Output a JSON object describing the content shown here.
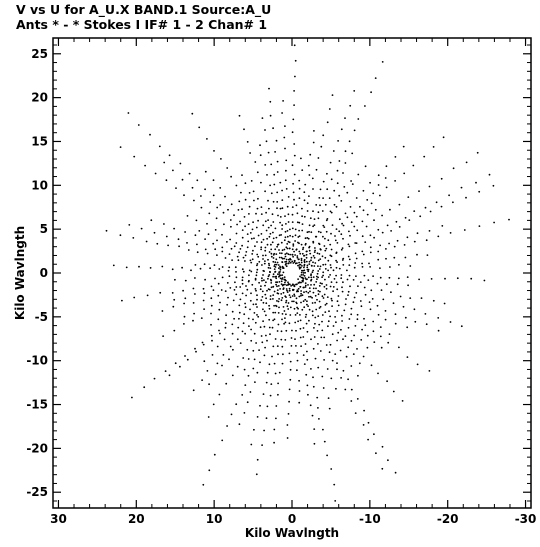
{
  "header": {
    "line1": "V vs U for A_U.X BAND.1   Source:A_U",
    "line2": "Ants * - *    Stokes I  IF# 1 - 2   Chan# 1"
  },
  "chart_data": {
    "type": "scatter",
    "title": "V vs U for A_U.X BAND.1   Source:A_U",
    "subtitle": "Ants * - *    Stokes I  IF# 1 - 2   Chan# 1",
    "xlabel": "Kilo Wavlngth",
    "ylabel": "Kilo Wavlngth",
    "xlim": [
      30.7,
      -30.7
    ],
    "ylim": [
      -26.8,
      26.8
    ],
    "x_reversed": true,
    "grid": false,
    "legend": "none",
    "x_ticks": [
      30,
      20,
      10,
      0,
      -10,
      -20,
      -30
    ],
    "x_tick_labels": [
      "30",
      "20",
      "10",
      "0",
      "-10",
      "-20",
      "-30"
    ],
    "y_ticks": [
      -25,
      -20,
      -15,
      -10,
      -5,
      0,
      5,
      10,
      15,
      20,
      25
    ],
    "y_tick_labels": [
      "-25",
      "-20",
      "-15",
      "-10",
      "-5",
      "0",
      "5",
      "10",
      "15",
      "20",
      "25"
    ],
    "point_style": "dot",
    "point_color": "#000000"
  }
}
